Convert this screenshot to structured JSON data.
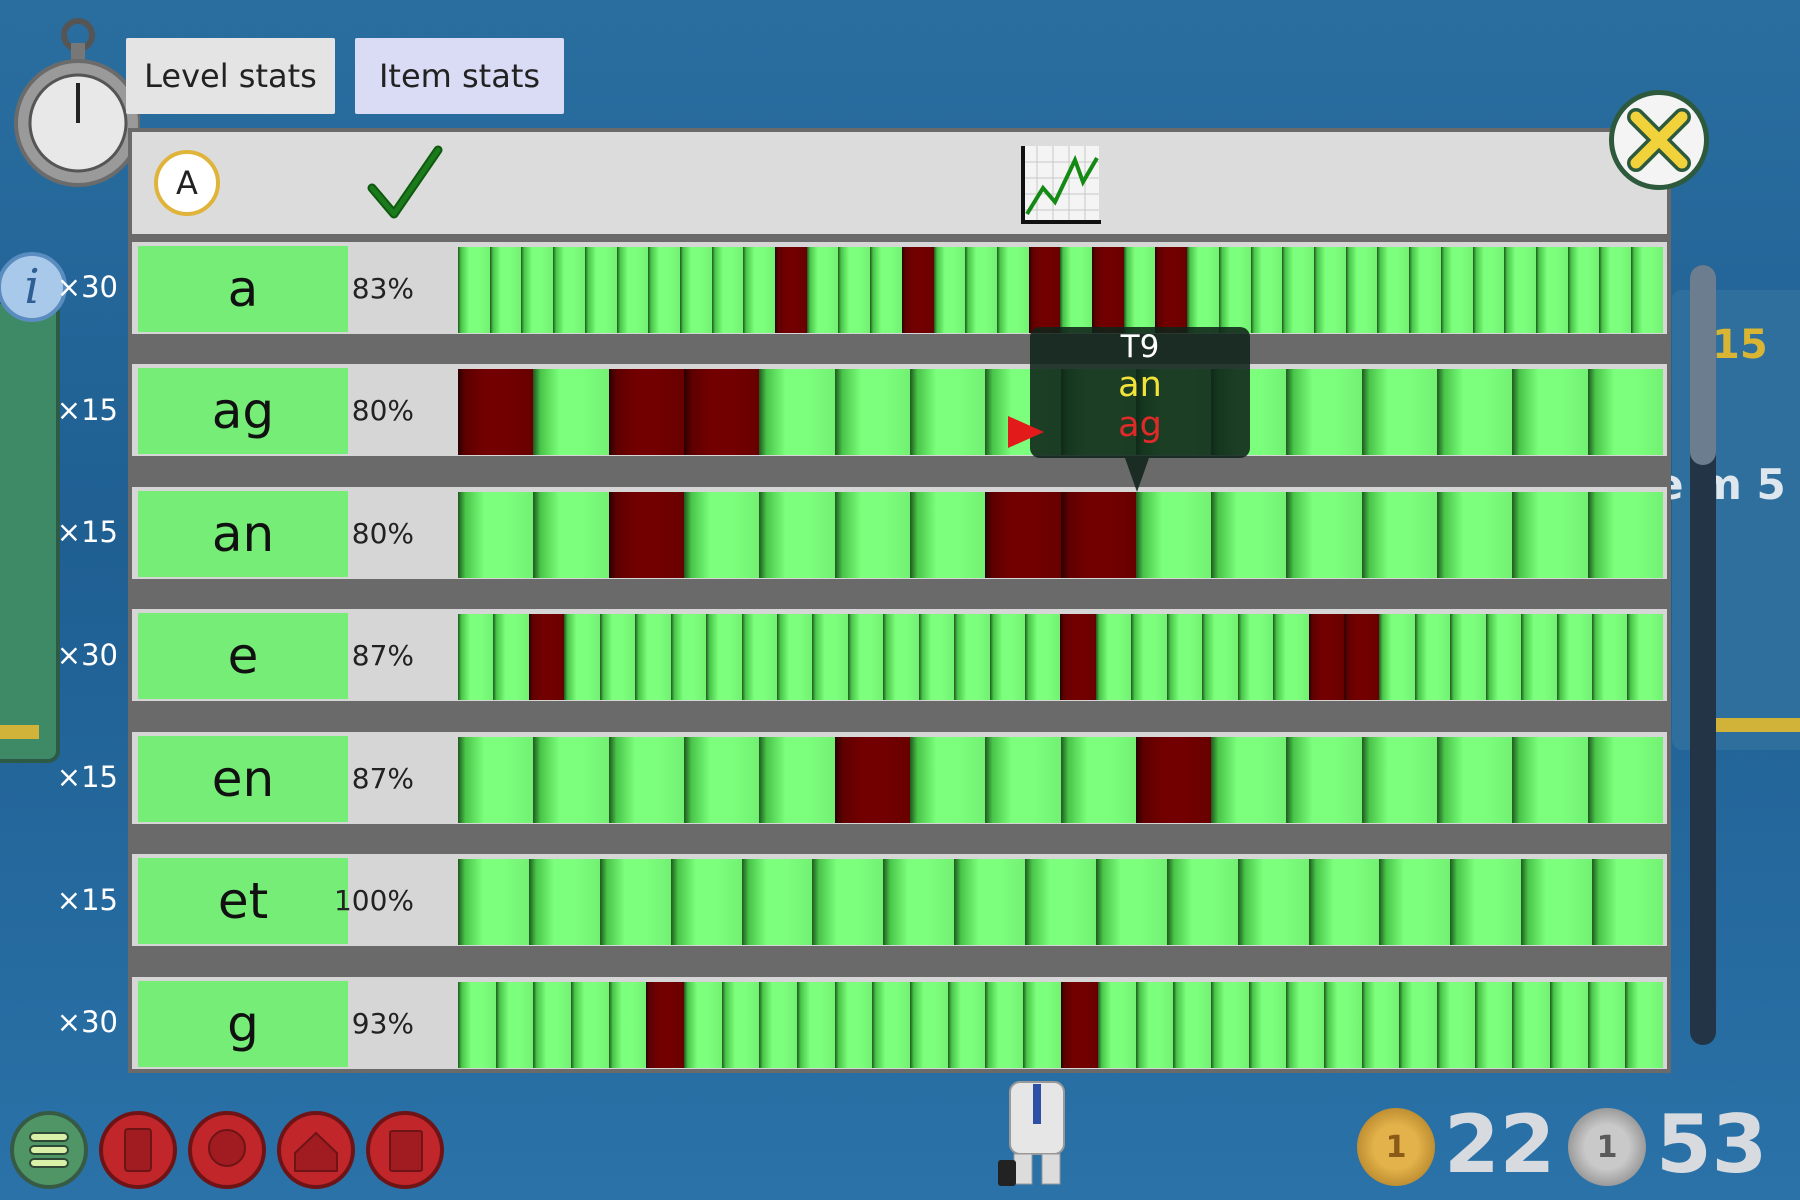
{
  "tabs": {
    "level_stats": "Level stats",
    "item_stats": "Item stats"
  },
  "header": {
    "sort_label": "A",
    "correct_icon": "check-icon",
    "chart_icon": "line-chart-icon"
  },
  "background": {
    "right_number": "15",
    "right_text": "e m 5"
  },
  "rows": [
    {
      "label": "a",
      "count": "×30",
      "percent": "83%",
      "results": "ooooooooooxoooxoooxoxoxooooooooooooooo"
    },
    {
      "label": "ag",
      "count": "×15",
      "percent": "80%",
      "results": "xoxxoooooooooooo"
    },
    {
      "label": "an",
      "count": "×15",
      "percent": "80%",
      "results": "ooxooooxxooooooo"
    },
    {
      "label": "e",
      "count": "×30",
      "percent": "87%",
      "results": "ooxooooooooooooooxooooooxxoooooooo"
    },
    {
      "label": "en",
      "count": "×15",
      "percent": "87%",
      "results": "oooooxoooxoooooo"
    },
    {
      "label": "et",
      "count": "×15",
      "percent": "100%",
      "results": "ooooooooooooooooo"
    },
    {
      "label": "g",
      "count": "×30",
      "percent": "93%",
      "results": "oooooxooooooooooxooooooooooooooo"
    }
  ],
  "tooltip": {
    "title": "T9",
    "given": "an",
    "expected": "ag"
  },
  "coins": {
    "gold_value": "1",
    "gold": "22",
    "silver_value": "1",
    "silver": "53"
  },
  "colors": {
    "correct": "#7cff7c",
    "wrong": "#720000",
    "label_bg": "#76ed76",
    "accent": "#e0b43a"
  }
}
